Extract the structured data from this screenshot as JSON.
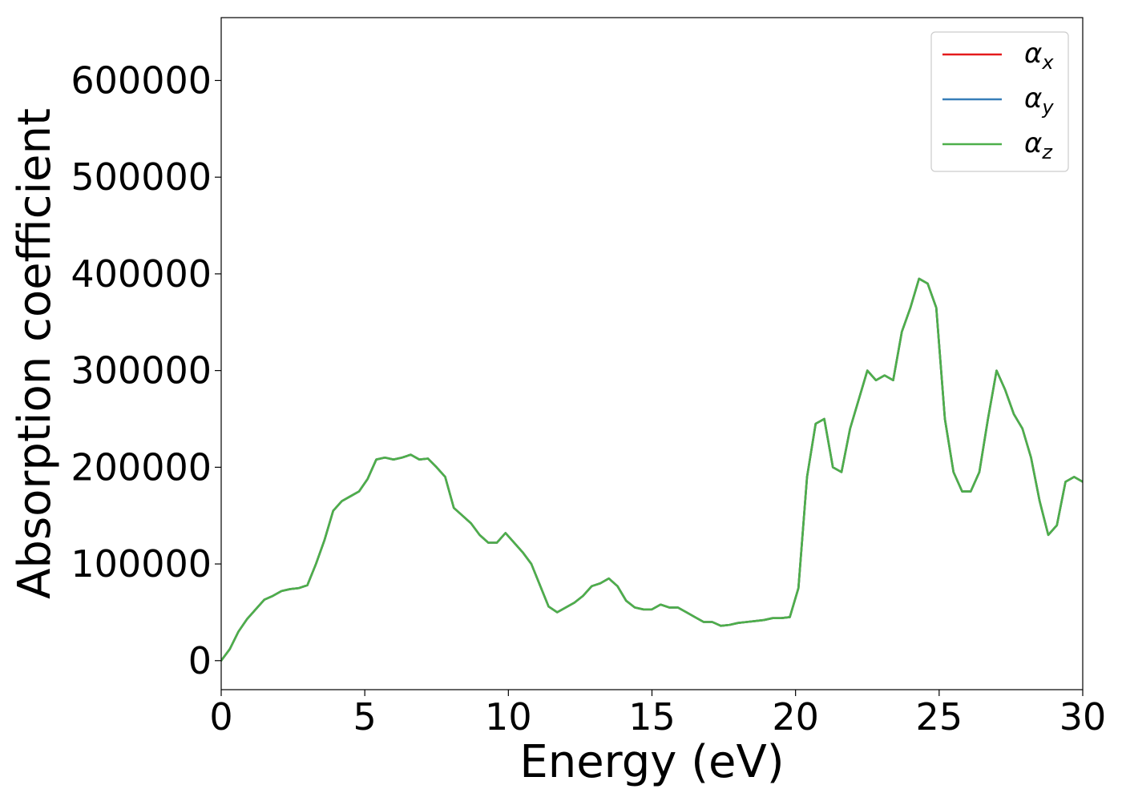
{
  "chart_data": {
    "type": "line",
    "title": "",
    "xlabel": "Energy (eV)",
    "ylabel": "Absorption coefficient",
    "xlim": [
      0,
      30
    ],
    "ylim": [
      -30000,
      665000
    ],
    "xticks": [
      0,
      5,
      10,
      15,
      20,
      25,
      30
    ],
    "xtick_labels": [
      "0",
      "5",
      "10",
      "15",
      "20",
      "25",
      "30"
    ],
    "yticks": [
      0,
      100000,
      200000,
      300000,
      400000,
      500000,
      600000
    ],
    "ytick_labels": [
      "0",
      "100000",
      "200000",
      "300000",
      "400000",
      "500000",
      "600000"
    ],
    "grid": false,
    "legend_position": "top-right",
    "series": [
      {
        "name": "αx",
        "legend_base": "α",
        "legend_sub": "x",
        "color": "#e41a1c",
        "x": [
          0,
          0.3,
          0.6,
          0.9,
          1.2,
          1.5,
          1.8,
          2.1,
          2.4,
          2.7,
          3.0,
          3.3,
          3.6,
          3.9,
          4.2,
          4.5,
          4.8,
          5.1,
          5.4,
          5.7,
          6.0,
          6.3,
          6.6,
          6.9,
          7.2,
          7.5,
          7.8,
          8.1,
          8.4,
          8.7,
          9.0,
          9.3,
          9.6,
          9.9,
          10.2,
          10.5,
          10.8,
          11.1,
          11.4,
          11.7,
          12.0,
          12.3,
          12.6,
          12.9,
          13.2,
          13.5,
          13.8,
          14.1,
          14.4,
          14.7,
          15.0,
          15.3,
          15.6,
          15.9,
          16.2,
          16.5,
          16.8,
          17.1,
          17.4,
          17.7,
          18.0,
          18.3,
          18.6,
          18.9,
          19.2,
          19.5,
          19.8,
          20.1,
          20.4,
          20.7,
          21.0,
          21.3,
          21.6,
          21.9,
          22.2,
          22.5,
          22.8,
          23.1,
          23.4,
          23.7,
          24.0,
          24.3,
          24.6,
          24.9,
          25.2,
          25.5,
          25.8,
          26.1,
          26.4,
          26.7,
          27.0,
          27.3,
          27.6,
          27.9,
          28.2,
          28.5,
          28.8,
          29.1,
          29.4,
          29.7,
          30.0
        ],
        "y": [
          0,
          12000,
          30000,
          43000,
          53000,
          63000,
          67000,
          72000,
          74000,
          75000,
          78000,
          100000,
          125000,
          155000,
          165000,
          170000,
          175000,
          188000,
          208000,
          210000,
          208000,
          210000,
          213000,
          208000,
          209000,
          200000,
          190000,
          158000,
          150000,
          142000,
          130000,
          122000,
          122000,
          132000,
          122000,
          112000,
          100000,
          78000,
          56000,
          50000,
          55000,
          60000,
          67000,
          77000,
          80000,
          85000,
          77000,
          62000,
          55000,
          53000,
          53000,
          58000,
          55000,
          55000,
          50000,
          45000,
          40000,
          40000,
          36000,
          37000,
          39000,
          40000,
          41000,
          42000,
          44000,
          44000,
          45000,
          75000,
          190000,
          245000,
          250000,
          200000,
          195000,
          240000,
          270000,
          300000,
          290000,
          295000,
          290000,
          340000,
          365000,
          395000,
          390000,
          365000,
          250000,
          195000,
          175000,
          175000,
          195000,
          250000,
          300000,
          280000,
          255000,
          240000,
          210000,
          165000,
          130000,
          140000,
          185000,
          190000,
          185000
        ]
      },
      {
        "name": "αy",
        "legend_base": "α",
        "legend_sub": "y",
        "color": "#377eb8",
        "x": [
          0,
          0.3,
          0.6,
          0.9,
          1.2,
          1.5,
          1.8,
          2.1,
          2.4,
          2.7,
          3.0,
          3.3,
          3.6,
          3.9,
          4.2,
          4.5,
          4.8,
          5.1,
          5.4,
          5.7,
          6.0,
          6.3,
          6.6,
          6.9,
          7.2,
          7.5,
          7.8,
          8.1,
          8.4,
          8.7,
          9.0,
          9.3,
          9.6,
          9.9,
          10.2,
          10.5,
          10.8,
          11.1,
          11.4,
          11.7,
          12.0,
          12.3,
          12.6,
          12.9,
          13.2,
          13.5,
          13.8,
          14.1,
          14.4,
          14.7,
          15.0,
          15.3,
          15.6,
          15.9,
          16.2,
          16.5,
          16.8,
          17.1,
          17.4,
          17.7,
          18.0,
          18.3,
          18.6,
          18.9,
          19.2,
          19.5,
          19.8,
          20.1,
          20.4,
          20.7,
          21.0,
          21.3,
          21.6,
          21.9,
          22.2,
          22.5,
          22.8,
          23.1,
          23.4,
          23.7,
          24.0,
          24.3,
          24.6,
          24.9,
          25.2,
          25.5,
          25.8,
          26.1,
          26.4,
          26.7,
          27.0,
          27.3,
          27.6,
          27.9,
          28.2,
          28.5,
          28.8,
          29.1,
          29.4,
          29.7,
          30.0
        ],
        "y": [
          0,
          12000,
          30000,
          43000,
          53000,
          63000,
          67000,
          72000,
          74000,
          75000,
          78000,
          100000,
          125000,
          155000,
          165000,
          170000,
          175000,
          188000,
          208000,
          210000,
          208000,
          210000,
          213000,
          208000,
          209000,
          200000,
          190000,
          158000,
          150000,
          142000,
          130000,
          122000,
          122000,
          132000,
          122000,
          112000,
          100000,
          78000,
          56000,
          50000,
          55000,
          60000,
          67000,
          77000,
          80000,
          85000,
          77000,
          62000,
          55000,
          53000,
          53000,
          58000,
          55000,
          55000,
          50000,
          45000,
          40000,
          40000,
          36000,
          37000,
          39000,
          40000,
          41000,
          42000,
          44000,
          44000,
          45000,
          75000,
          190000,
          245000,
          250000,
          200000,
          195000,
          240000,
          270000,
          300000,
          290000,
          295000,
          290000,
          340000,
          365000,
          395000,
          390000,
          365000,
          250000,
          195000,
          175000,
          175000,
          195000,
          250000,
          300000,
          280000,
          255000,
          240000,
          210000,
          165000,
          130000,
          140000,
          185000,
          190000,
          185000
        ]
      },
      {
        "name": "αz",
        "legend_base": "α",
        "legend_sub": "z",
        "color": "#4daf4a",
        "x": [
          0,
          0.3,
          0.6,
          0.9,
          1.2,
          1.5,
          1.8,
          2.1,
          2.4,
          2.7,
          3.0,
          3.3,
          3.6,
          3.9,
          4.2,
          4.5,
          4.8,
          5.1,
          5.4,
          5.7,
          6.0,
          6.3,
          6.6,
          6.9,
          7.2,
          7.5,
          7.8,
          8.1,
          8.4,
          8.7,
          9.0,
          9.3,
          9.6,
          9.9,
          10.2,
          10.5,
          10.8,
          11.1,
          11.4,
          11.7,
          12.0,
          12.3,
          12.6,
          12.9,
          13.2,
          13.5,
          13.8,
          14.1,
          14.4,
          14.7,
          15.0,
          15.3,
          15.6,
          15.9,
          16.2,
          16.5,
          16.8,
          17.1,
          17.4,
          17.7,
          18.0,
          18.3,
          18.6,
          18.9,
          19.2,
          19.5,
          19.8,
          20.1,
          20.4,
          20.7,
          21.0,
          21.3,
          21.6,
          21.9,
          22.2,
          22.5,
          22.8,
          23.1,
          23.4,
          23.7,
          24.0,
          24.3,
          24.6,
          24.9,
          25.2,
          25.5,
          25.8,
          26.1,
          26.4,
          26.7,
          27.0,
          27.3,
          27.6,
          27.9,
          28.2,
          28.5,
          28.8,
          29.1,
          29.4,
          29.7,
          30.0
        ],
        "y": [
          0,
          12000,
          30000,
          43000,
          53000,
          63000,
          67000,
          72000,
          74000,
          75000,
          78000,
          100000,
          125000,
          155000,
          165000,
          170000,
          175000,
          188000,
          208000,
          210000,
          208000,
          210000,
          213000,
          208000,
          209000,
          200000,
          190000,
          158000,
          150000,
          142000,
          130000,
          122000,
          122000,
          132000,
          122000,
          112000,
          100000,
          78000,
          56000,
          50000,
          55000,
          60000,
          67000,
          77000,
          80000,
          85000,
          77000,
          62000,
          55000,
          53000,
          53000,
          58000,
          55000,
          55000,
          50000,
          45000,
          40000,
          40000,
          36000,
          37000,
          39000,
          40000,
          41000,
          42000,
          44000,
          44000,
          45000,
          75000,
          190000,
          245000,
          250000,
          200000,
          195000,
          240000,
          270000,
          300000,
          290000,
          295000,
          290000,
          340000,
          365000,
          395000,
          390000,
          365000,
          250000,
          195000,
          175000,
          175000,
          195000,
          250000,
          300000,
          280000,
          255000,
          240000,
          210000,
          165000,
          130000,
          140000,
          185000,
          190000,
          185000
        ]
      }
    ]
  }
}
